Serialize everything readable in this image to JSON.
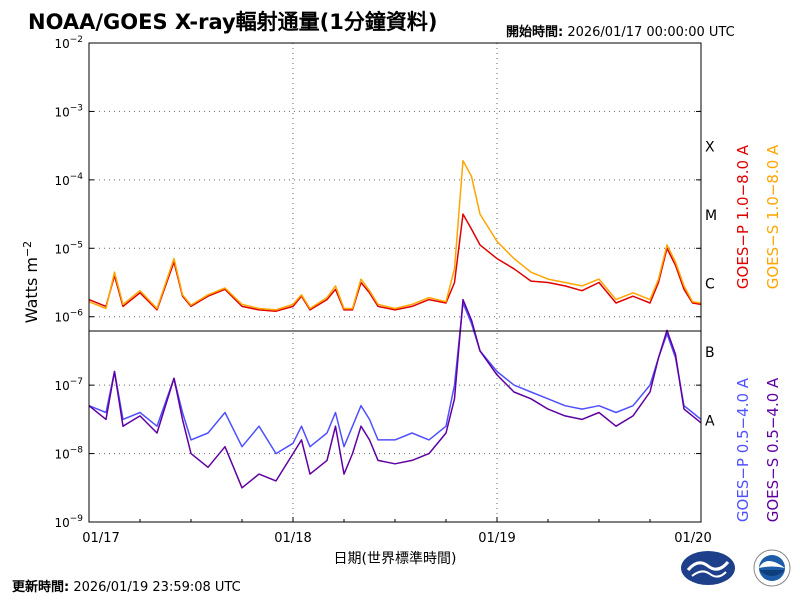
{
  "header": {
    "title": "NOAA/GOES X-ray輻射通量(1分鐘資料)",
    "start_label": "開始時間:",
    "start_value": "2026/01/17 00:00:00 UTC"
  },
  "footer": {
    "update_label": "更新時間:",
    "update_value": "2026/01/19 23:59:08 UTC"
  },
  "chart_data": {
    "type": "line",
    "title": "NOAA/GOES X-ray輻射通量(1分鐘資料)",
    "xlabel": "日期(世界標準時間)",
    "ylabel": "Watts m",
    "ylabel_exponent": "−2",
    "x_range_hours": [
      0,
      72
    ],
    "x_ticks": [
      {
        "h": 0,
        "label": "01/17"
      },
      {
        "h": 24,
        "label": "01/18"
      },
      {
        "h": 48,
        "label": "01/19"
      },
      {
        "h": 72,
        "label": "01/20"
      }
    ],
    "y_scale": "log",
    "y_exponents": [
      -9,
      -8,
      -7,
      -6,
      -5,
      -4,
      -3,
      -2
    ],
    "grid": true,
    "flare_classes": [
      {
        "label": "X",
        "exp": -3.5
      },
      {
        "label": "M",
        "exp": -4.5
      },
      {
        "label": "C",
        "exp": -5.5
      },
      {
        "label": "B",
        "exp": -6.5
      },
      {
        "label": "A",
        "exp": -7.5
      }
    ],
    "series": [
      {
        "name": "GOES−P 1.0−8.0 A",
        "color": "#e00000",
        "points": [
          [
            0,
            -5.75
          ],
          [
            2,
            -5.85
          ],
          [
            3,
            -5.4
          ],
          [
            4,
            -5.85
          ],
          [
            6,
            -5.65
          ],
          [
            8,
            -5.9
          ],
          [
            10,
            -5.2
          ],
          [
            11,
            -5.7
          ],
          [
            12,
            -5.85
          ],
          [
            14,
            -5.7
          ],
          [
            16,
            -5.6
          ],
          [
            18,
            -5.85
          ],
          [
            20,
            -5.9
          ],
          [
            22,
            -5.92
          ],
          [
            24,
            -5.85
          ],
          [
            25,
            -5.7
          ],
          [
            26,
            -5.9
          ],
          [
            28,
            -5.75
          ],
          [
            29,
            -5.6
          ],
          [
            30,
            -5.9
          ],
          [
            31,
            -5.9
          ],
          [
            32,
            -5.5
          ],
          [
            33,
            -5.65
          ],
          [
            34,
            -5.85
          ],
          [
            36,
            -5.9
          ],
          [
            38,
            -5.85
          ],
          [
            40,
            -5.75
          ],
          [
            42,
            -5.8
          ],
          [
            43,
            -5.5
          ],
          [
            44,
            -4.5
          ],
          [
            45,
            -4.72
          ],
          [
            46,
            -4.95
          ],
          [
            48,
            -5.15
          ],
          [
            50,
            -5.3
          ],
          [
            52,
            -5.48
          ],
          [
            54,
            -5.5
          ],
          [
            56,
            -5.55
          ],
          [
            58,
            -5.62
          ],
          [
            60,
            -5.5
          ],
          [
            62,
            -5.8
          ],
          [
            64,
            -5.7
          ],
          [
            66,
            -5.8
          ],
          [
            67,
            -5.5
          ],
          [
            68,
            -5.0
          ],
          [
            69,
            -5.25
          ],
          [
            70,
            -5.6
          ],
          [
            71,
            -5.8
          ],
          [
            72,
            -5.82
          ]
        ]
      },
      {
        "name": "GOES−S 1.0−8.0 A",
        "color": "#ffa500",
        "points": [
          [
            0,
            -5.78
          ],
          [
            2,
            -5.88
          ],
          [
            3,
            -5.35
          ],
          [
            4,
            -5.82
          ],
          [
            6,
            -5.62
          ],
          [
            8,
            -5.88
          ],
          [
            10,
            -5.15
          ],
          [
            11,
            -5.68
          ],
          [
            12,
            -5.83
          ],
          [
            14,
            -5.68
          ],
          [
            16,
            -5.58
          ],
          [
            18,
            -5.82
          ],
          [
            20,
            -5.88
          ],
          [
            22,
            -5.9
          ],
          [
            24,
            -5.82
          ],
          [
            25,
            -5.68
          ],
          [
            26,
            -5.88
          ],
          [
            28,
            -5.72
          ],
          [
            29,
            -5.55
          ],
          [
            30,
            -5.88
          ],
          [
            31,
            -5.88
          ],
          [
            32,
            -5.45
          ],
          [
            33,
            -5.62
          ],
          [
            34,
            -5.82
          ],
          [
            36,
            -5.88
          ],
          [
            38,
            -5.82
          ],
          [
            40,
            -5.72
          ],
          [
            42,
            -5.78
          ],
          [
            43,
            -5.3
          ],
          [
            44,
            -3.72
          ],
          [
            45,
            -3.95
          ],
          [
            46,
            -4.5
          ],
          [
            48,
            -4.9
          ],
          [
            50,
            -5.15
          ],
          [
            52,
            -5.35
          ],
          [
            54,
            -5.45
          ],
          [
            56,
            -5.5
          ],
          [
            58,
            -5.55
          ],
          [
            60,
            -5.45
          ],
          [
            62,
            -5.75
          ],
          [
            64,
            -5.65
          ],
          [
            66,
            -5.75
          ],
          [
            67,
            -5.45
          ],
          [
            68,
            -4.95
          ],
          [
            69,
            -5.2
          ],
          [
            70,
            -5.55
          ],
          [
            71,
            -5.78
          ],
          [
            72,
            -5.8
          ]
        ]
      },
      {
        "name": "GOES−P 0.5−4.0 A",
        "color": "#5050ff",
        "points": [
          [
            0,
            -7.3
          ],
          [
            2,
            -7.4
          ],
          [
            3,
            -6.8
          ],
          [
            4,
            -7.5
          ],
          [
            6,
            -7.4
          ],
          [
            8,
            -7.6
          ],
          [
            10,
            -6.9
          ],
          [
            11,
            -7.4
          ],
          [
            12,
            -7.8
          ],
          [
            14,
            -7.7
          ],
          [
            16,
            -7.4
          ],
          [
            18,
            -7.9
          ],
          [
            20,
            -7.6
          ],
          [
            22,
            -8.0
          ],
          [
            24,
            -7.85
          ],
          [
            25,
            -7.6
          ],
          [
            26,
            -7.9
          ],
          [
            28,
            -7.7
          ],
          [
            29,
            -7.4
          ],
          [
            30,
            -7.9
          ],
          [
            31,
            -7.6
          ],
          [
            32,
            -7.3
          ],
          [
            33,
            -7.5
          ],
          [
            34,
            -7.8
          ],
          [
            36,
            -7.8
          ],
          [
            38,
            -7.7
          ],
          [
            40,
            -7.8
          ],
          [
            42,
            -7.6
          ],
          [
            43,
            -7.0
          ],
          [
            44,
            -5.8
          ],
          [
            45,
            -6.1
          ],
          [
            46,
            -6.5
          ],
          [
            48,
            -6.8
          ],
          [
            50,
            -7.0
          ],
          [
            52,
            -7.1
          ],
          [
            54,
            -7.2
          ],
          [
            56,
            -7.3
          ],
          [
            58,
            -7.35
          ],
          [
            60,
            -7.3
          ],
          [
            62,
            -7.4
          ],
          [
            64,
            -7.3
          ],
          [
            66,
            -7.0
          ],
          [
            67,
            -6.6
          ],
          [
            68,
            -6.25
          ],
          [
            69,
            -6.6
          ],
          [
            70,
            -7.3
          ],
          [
            71,
            -7.4
          ],
          [
            72,
            -7.5
          ]
        ]
      },
      {
        "name": "GOES−S 0.5−4.0 A",
        "color": "#6000a0",
        "points": [
          [
            0,
            -7.3
          ],
          [
            2,
            -7.5
          ],
          [
            3,
            -6.8
          ],
          [
            4,
            -7.6
          ],
          [
            6,
            -7.45
          ],
          [
            8,
            -7.7
          ],
          [
            10,
            -6.9
          ],
          [
            11,
            -7.5
          ],
          [
            12,
            -8.0
          ],
          [
            14,
            -8.2
          ],
          [
            16,
            -7.9
          ],
          [
            18,
            -8.5
          ],
          [
            20,
            -8.3
          ],
          [
            22,
            -8.4
          ],
          [
            24,
            -8.0
          ],
          [
            25,
            -7.8
          ],
          [
            26,
            -8.3
          ],
          [
            28,
            -8.1
          ],
          [
            29,
            -7.6
          ],
          [
            30,
            -8.3
          ],
          [
            31,
            -8.0
          ],
          [
            32,
            -7.6
          ],
          [
            33,
            -7.8
          ],
          [
            34,
            -8.1
          ],
          [
            36,
            -8.15
          ],
          [
            38,
            -8.1
          ],
          [
            40,
            -8.0
          ],
          [
            42,
            -7.7
          ],
          [
            43,
            -7.2
          ],
          [
            44,
            -5.75
          ],
          [
            45,
            -6.05
          ],
          [
            46,
            -6.5
          ],
          [
            48,
            -6.85
          ],
          [
            50,
            -7.1
          ],
          [
            52,
            -7.2
          ],
          [
            54,
            -7.35
          ],
          [
            56,
            -7.45
          ],
          [
            58,
            -7.5
          ],
          [
            60,
            -7.4
          ],
          [
            62,
            -7.6
          ],
          [
            64,
            -7.45
          ],
          [
            66,
            -7.1
          ],
          [
            67,
            -6.6
          ],
          [
            68,
            -6.2
          ],
          [
            69,
            -6.55
          ],
          [
            70,
            -7.35
          ],
          [
            71,
            -7.45
          ],
          [
            72,
            -7.55
          ]
        ]
      }
    ]
  },
  "legend": [
    {
      "label": "GOES−P 1.0−8.0 A",
      "color": "#e00000"
    },
    {
      "label": "GOES−S 1.0−8.0 A",
      "color": "#ffa500"
    },
    {
      "label": "GOES−P 0.5−4.0 A",
      "color": "#5050ff"
    },
    {
      "label": "GOES−S 0.5−4.0 A",
      "color": "#6000a0"
    }
  ],
  "logos": {
    "left": "cwa-logo",
    "right": "noaa-logo"
  }
}
